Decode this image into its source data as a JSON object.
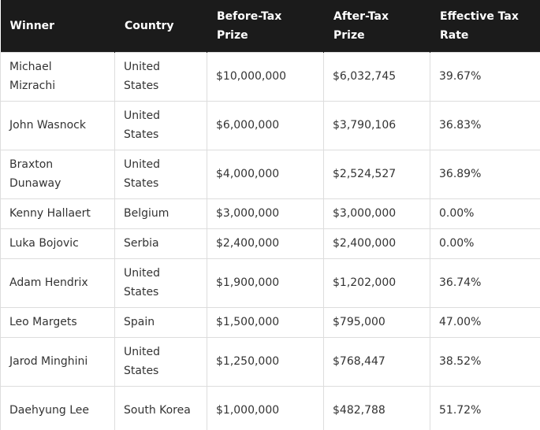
{
  "table": {
    "header": [
      "Winner",
      "Country",
      "Before-Tax Prize",
      "After-Tax Prize",
      "Effective Tax Rate"
    ],
    "rows": [
      [
        "Michael Mizrachi",
        "United States",
        "$10,000,000",
        "$6,032,745",
        "39.67%"
      ],
      [
        "John Wasnock",
        "United States",
        "$6,000,000",
        "$3,790,106",
        "36.83%"
      ],
      [
        "Braxton Dunaway",
        "United States",
        "$4,000,000",
        "$2,524,527",
        "36.89%"
      ],
      [
        "Kenny Hallaert",
        "Belgium",
        "$3,000,000",
        "$3,000,000",
        "0.00%"
      ],
      [
        "Luka Bojovic",
        "Serbia",
        "$2,400,000",
        "$2,400,000",
        "0.00%"
      ],
      [
        "Adam Hendrix",
        "United States",
        "$1,900,000",
        "$1,202,000",
        "36.74%"
      ],
      [
        "Leo Margets",
        "Spain",
        "$1,500,000",
        "$795,000",
        "47.00%"
      ],
      [
        "Jarod Minghini",
        "United States",
        "$1,250,000",
        "$768,447",
        "38.52%"
      ],
      [
        "Daehyung Lee",
        "South Korea",
        "$1,000,000",
        "$482,788",
        "51.72%"
      ]
    ]
  }
}
